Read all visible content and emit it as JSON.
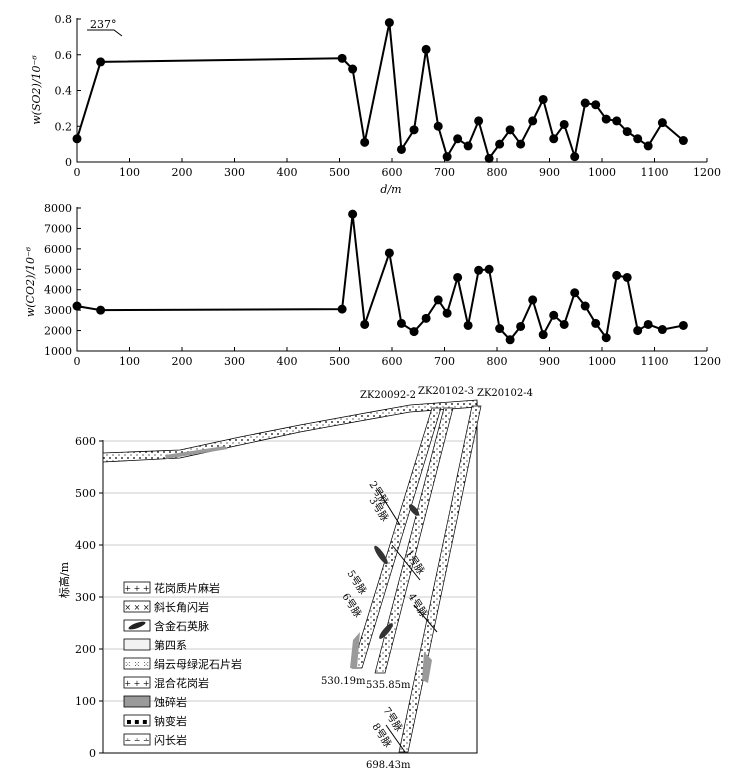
{
  "chart_data": [
    {
      "type": "line",
      "ylabel": "w(SO2)/10⁻⁶",
      "xlabel": "d/m",
      "xlim": [
        0,
        1200
      ],
      "ylim": [
        0,
        0.8
      ],
      "xticks": [
        "0",
        "100",
        "200",
        "300",
        "400",
        "500",
        "600",
        "700",
        "800",
        "900",
        "1000",
        "1100",
        "1200"
      ],
      "yticks": [
        "0",
        "0.2",
        "0.4",
        "0.6",
        "0.8"
      ],
      "annotation": "237°",
      "x": [
        0,
        45,
        505,
        525,
        548,
        595,
        618,
        642,
        665,
        688,
        705,
        725,
        745,
        765,
        785,
        805,
        825,
        845,
        868,
        888,
        908,
        928,
        948,
        968,
        988,
        1008,
        1028,
        1048,
        1068,
        1088,
        1115,
        1155
      ],
      "values": [
        0.13,
        0.56,
        0.58,
        0.52,
        0.11,
        0.78,
        0.07,
        0.18,
        0.63,
        0.2,
        0.03,
        0.13,
        0.09,
        0.23,
        0.02,
        0.1,
        0.18,
        0.1,
        0.23,
        0.35,
        0.13,
        0.21,
        0.03,
        0.33,
        0.32,
        0.24,
        0.23,
        0.17,
        0.13,
        0.09,
        0.22,
        0.12
      ]
    },
    {
      "type": "line",
      "ylabel": "w(CO2)/10⁻⁶",
      "xlabel": "",
      "xlim": [
        0,
        1200
      ],
      "ylim": [
        1000,
        8000
      ],
      "xticks": [
        "0",
        "100",
        "200",
        "300",
        "400",
        "500",
        "600",
        "700",
        "800",
        "900",
        "1000",
        "1100",
        "1200"
      ],
      "yticks": [
        "1000",
        "2000",
        "3000",
        "4000",
        "5000",
        "6000",
        "7000",
        "8000"
      ],
      "x": [
        0,
        45,
        505,
        525,
        548,
        595,
        618,
        642,
        665,
        688,
        705,
        725,
        745,
        765,
        785,
        805,
        825,
        845,
        868,
        888,
        908,
        928,
        948,
        968,
        988,
        1008,
        1028,
        1048,
        1068,
        1088,
        1115,
        1155
      ],
      "values": [
        3200,
        3000,
        3050,
        7700,
        2300,
        5800,
        2350,
        1950,
        2600,
        3500,
        2850,
        4600,
        2250,
        4950,
        5000,
        2100,
        1550,
        2200,
        3500,
        1800,
        2750,
        2300,
        3850,
        3200,
        2350,
        1650,
        4700,
        4600,
        2000,
        2300,
        2050,
        2250
      ]
    },
    {
      "type": "other",
      "ylabel": "标高/m",
      "ylim": [
        0,
        600
      ],
      "yticks": [
        "0",
        "100",
        "200",
        "300",
        "400",
        "500",
        "600"
      ],
      "drillholes": [
        "ZK20092-2",
        "ZK20102-3",
        "ZK20102-4"
      ],
      "depths": [
        "530.19m",
        "535.85m",
        "698.43m"
      ],
      "veins": [
        "2号脉",
        "3号脉",
        "1号脉",
        "5号脉",
        "6号脉",
        "4号脉",
        "7号脉",
        "8号脉"
      ],
      "legend": [
        "花岗质片麻岩",
        "斜长角闪岩",
        "含金石英脉",
        "第四系",
        "绢云母绿泥石片岩",
        "混合花岗岩",
        "蚀碎岩",
        "钠变岩",
        "闪长岩"
      ]
    }
  ]
}
